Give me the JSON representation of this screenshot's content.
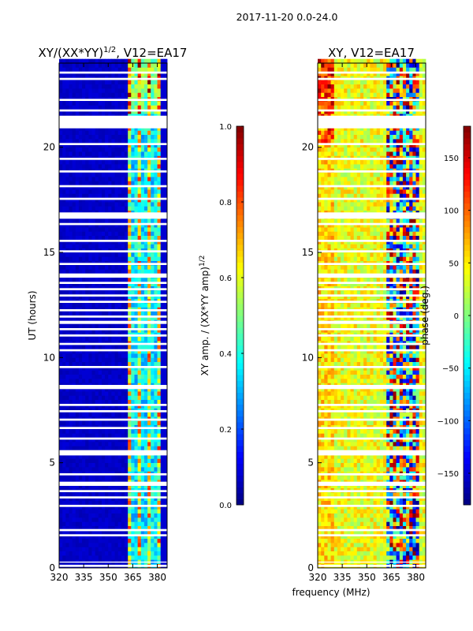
{
  "suptitle": "2017-11-20 0.0-24.0",
  "xlabel": "frequency (MHz)",
  "chart_data": [
    {
      "type": "heatmap",
      "title": "XY/(XX*YY)^{1/2}, V12=EA17",
      "title_main": "XY/(XX*YY)",
      "title_sup": "1/2",
      "title_tail": ", V12=EA17",
      "xlabel": "",
      "ylabel": "UT (hours)",
      "xlim": [
        320,
        386
      ],
      "ylim": [
        0,
        24
      ],
      "xticks": [
        "320",
        "335",
        "350",
        "365",
        "380"
      ],
      "yticks": [
        "0",
        "5",
        "10",
        "15",
        "20"
      ],
      "colorbar": {
        "label": "XY amp. / (XX*YY amp)^{1/2}",
        "label_main": "XY amp. / (XX*YY amp)",
        "label_sup": "1/2",
        "range": [
          0,
          1
        ],
        "ticks": [
          "0.0",
          "0.2",
          "0.4",
          "0.6",
          "0.8",
          "1.0"
        ],
        "cmap": "jet"
      },
      "description_values": {
        "low_band_mean": 0.05,
        "high_band_range": [
          362,
          382
        ],
        "high_band_values": [
          0.3,
          0.9
        ],
        "stripe_freqs": [
          366,
          372,
          378
        ]
      }
    },
    {
      "type": "heatmap",
      "title": "XY, V12=EA17",
      "xlabel": "frequency (MHz)",
      "ylabel": "",
      "xlim": [
        320,
        386
      ],
      "ylim": [
        0,
        24
      ],
      "xticks": [
        "320",
        "335",
        "350",
        "365",
        "380"
      ],
      "yticks": [
        "0",
        "5",
        "10",
        "15",
        "20"
      ],
      "colorbar": {
        "label": "phase (deg.)",
        "range": [
          -180,
          180
        ],
        "ticks": [
          "-150",
          "-100",
          "-50",
          "0",
          "50",
          "100",
          "150"
        ],
        "cmap": "jet"
      },
      "description_values": {
        "low_band_phase_range": [
          0,
          60
        ],
        "high_band_range": [
          362,
          382
        ],
        "high_band_phase_range": [
          -180,
          180
        ]
      }
    }
  ],
  "flagged_hours": [
    [
      0.05,
      0.15
    ],
    [
      0.25,
      0.3
    ],
    [
      1.5,
      1.6
    ],
    [
      1.75,
      1.85
    ],
    [
      2.9,
      3.0
    ],
    [
      3.3,
      3.4
    ],
    [
      3.6,
      3.7
    ],
    [
      3.9,
      4.1
    ],
    [
      4.4,
      4.5
    ],
    [
      5.35,
      5.6
    ],
    [
      6.1,
      6.2
    ],
    [
      6.6,
      6.7
    ],
    [
      7.0,
      7.1
    ],
    [
      7.4,
      7.5
    ],
    [
      7.7,
      7.8
    ],
    [
      8.5,
      8.7
    ],
    [
      9.5,
      9.6
    ],
    [
      10.3,
      10.4
    ],
    [
      10.6,
      10.7
    ],
    [
      11.0,
      11.1
    ],
    [
      11.3,
      11.4
    ],
    [
      11.6,
      11.75
    ],
    [
      11.9,
      12.0
    ],
    [
      12.2,
      12.3
    ],
    [
      12.6,
      12.7
    ],
    [
      12.9,
      13.0
    ],
    [
      13.2,
      13.3
    ],
    [
      13.5,
      13.6
    ],
    [
      13.8,
      14.0
    ],
    [
      14.4,
      14.5
    ],
    [
      15.0,
      15.1
    ],
    [
      15.5,
      15.6
    ],
    [
      16.3,
      16.4
    ],
    [
      16.6,
      16.9
    ],
    [
      17.5,
      17.6
    ],
    [
      18.1,
      18.2
    ],
    [
      18.8,
      18.9
    ],
    [
      19.4,
      19.5
    ],
    [
      20.1,
      20.2
    ],
    [
      20.9,
      21.5
    ],
    [
      21.7,
      21.8
    ],
    [
      22.2,
      22.3
    ],
    [
      23.2,
      23.3
    ],
    [
      23.5,
      23.6
    ]
  ]
}
